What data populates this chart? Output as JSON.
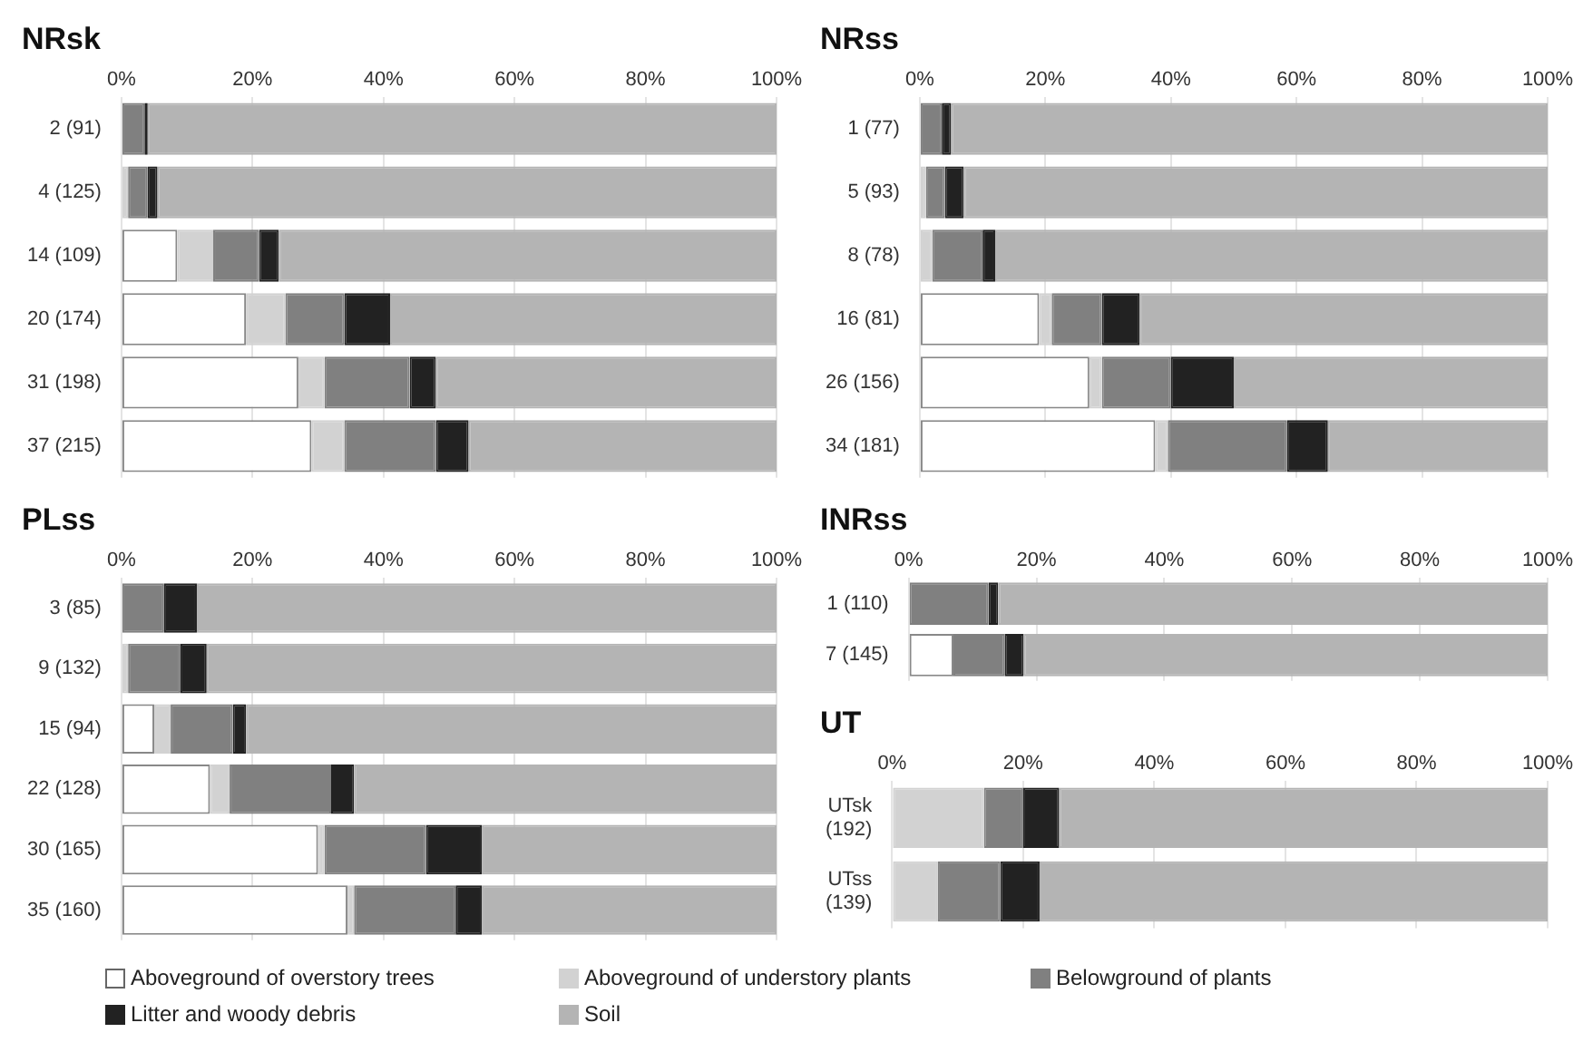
{
  "chart_data": [
    {
      "type": "bar",
      "title": "NRsk",
      "orientation": "horizontal",
      "stacked": true,
      "categories": [
        "2 (91)",
        "4 (125)",
        "14 (109)",
        "20 (174)",
        "31 (198)",
        "37 (215)"
      ],
      "xlim": [
        0,
        100
      ],
      "xticks": [
        {
          "value": 0,
          "label": "0%"
        },
        {
          "value": 20,
          "label": "20%"
        },
        {
          "value": 40,
          "label": "40%"
        },
        {
          "value": 60,
          "label": "60%"
        },
        {
          "value": 80,
          "label": "80%"
        },
        {
          "value": 100,
          "label": "100%"
        }
      ],
      "grid": "x",
      "legend": "bottom",
      "series": [
        {
          "name": "Aboveground of overstory trees",
          "color": "#ffffff",
          "values": [
            0,
            0,
            8.5,
            19,
            27,
            29
          ]
        },
        {
          "name": "Aboveground of understory plants",
          "color": "#d2d2d2",
          "values": [
            0,
            1,
            5.5,
            6,
            4,
            5
          ]
        },
        {
          "name": "Belowground of plants",
          "color": "#808080",
          "values": [
            3.5,
            3,
            7,
            9,
            13,
            14
          ]
        },
        {
          "name": "Litter and woody debris",
          "color": "#222222",
          "values": [
            0.5,
            1.5,
            3,
            7,
            4,
            5
          ]
        },
        {
          "name": "Soil",
          "color": "#b4b4b4",
          "values": [
            96,
            94.5,
            76,
            59,
            52,
            47
          ]
        }
      ]
    },
    {
      "type": "bar",
      "title": "NRss",
      "orientation": "horizontal",
      "stacked": true,
      "categories": [
        "1 (77)",
        "5 (93)",
        "8 (78)",
        "16 (81)",
        "26 (156)",
        "34 (181)"
      ],
      "xlim": [
        0,
        100
      ],
      "xticks": [
        {
          "value": 0,
          "label": "0%"
        },
        {
          "value": 20,
          "label": "20%"
        },
        {
          "value": 40,
          "label": "40%"
        },
        {
          "value": 60,
          "label": "60%"
        },
        {
          "value": 80,
          "label": "80%"
        },
        {
          "value": 100,
          "label": "100%"
        }
      ],
      "grid": "x",
      "series": [
        {
          "color": "#ffffff",
          "values": [
            0,
            0,
            0,
            19,
            27,
            37.5
          ]
        },
        {
          "color": "#d2d2d2",
          "values": [
            0,
            1,
            2,
            2,
            2,
            2
          ]
        },
        {
          "color": "#808080",
          "values": [
            3.5,
            3,
            8,
            8,
            11,
            19
          ]
        },
        {
          "color": "#222222",
          "values": [
            1.5,
            3,
            2,
            6,
            10,
            6.5
          ]
        },
        {
          "color": "#b4b4b4",
          "values": [
            95,
            93,
            88,
            65,
            50,
            35
          ]
        }
      ]
    },
    {
      "type": "bar",
      "title": "PLss",
      "orientation": "horizontal",
      "stacked": true,
      "categories": [
        "3 (85)",
        "9 (132)",
        "15 (94)",
        "22 (128)",
        "30 (165)",
        "35 (160)"
      ],
      "xlim": [
        0,
        100
      ],
      "xticks": [
        {
          "value": 0,
          "label": "0%"
        },
        {
          "value": 20,
          "label": "20%"
        },
        {
          "value": 40,
          "label": "40%"
        },
        {
          "value": 60,
          "label": "60%"
        },
        {
          "value": 80,
          "label": "80%"
        },
        {
          "value": 100,
          "label": "100%"
        }
      ],
      "grid": "x",
      "series": [
        {
          "color": "#ffffff",
          "values": [
            0,
            0,
            5,
            13.5,
            30,
            34.5
          ]
        },
        {
          "color": "#d2d2d2",
          "values": [
            0,
            1,
            2.5,
            3,
            1,
            1
          ]
        },
        {
          "color": "#808080",
          "values": [
            6.5,
            8,
            9.5,
            15.5,
            15.5,
            15.5
          ]
        },
        {
          "color": "#222222",
          "values": [
            5,
            4,
            2,
            3.5,
            8.5,
            4
          ]
        },
        {
          "color": "#b4b4b4",
          "values": [
            88.5,
            87,
            81,
            64.5,
            45,
            45
          ]
        }
      ]
    },
    {
      "type": "bar",
      "title": "INRss",
      "orientation": "horizontal",
      "stacked": true,
      "categories": [
        "1 (110)",
        "7 (145)"
      ],
      "xlim": [
        0,
        100
      ],
      "xticks": [
        {
          "value": 0,
          "label": "0%"
        },
        {
          "value": 20,
          "label": "20%"
        },
        {
          "value": 40,
          "label": "40%"
        },
        {
          "value": 60,
          "label": "60%"
        },
        {
          "value": 80,
          "label": "80%"
        },
        {
          "value": 100,
          "label": "100%"
        }
      ],
      "grid": "x",
      "series": [
        {
          "color": "#ffffff",
          "values": [
            0,
            7
          ]
        },
        {
          "color": "#d2d2d2",
          "values": [
            0,
            0
          ]
        },
        {
          "color": "#808080",
          "values": [
            12.5,
            8
          ]
        },
        {
          "color": "#222222",
          "values": [
            1.5,
            3
          ]
        },
        {
          "color": "#b4b4b4",
          "values": [
            86,
            82
          ]
        }
      ]
    },
    {
      "type": "bar",
      "title": "UT",
      "orientation": "horizontal",
      "stacked": true,
      "categories": [
        "UTsk\n(192)",
        "UTss\n(139)"
      ],
      "xlim": [
        0,
        100
      ],
      "xticks": [
        {
          "value": 0,
          "label": "0%"
        },
        {
          "value": 20,
          "label": "20%"
        },
        {
          "value": 40,
          "label": "40%"
        },
        {
          "value": 60,
          "label": "60%"
        },
        {
          "value": 80,
          "label": "80%"
        },
        {
          "value": 100,
          "label": "100%"
        }
      ],
      "grid": "x",
      "series": [
        {
          "color": "#ffffff",
          "values": [
            0,
            0
          ]
        },
        {
          "color": "#d2d2d2",
          "values": [
            14,
            7
          ]
        },
        {
          "color": "#808080",
          "values": [
            6,
            9.5
          ]
        },
        {
          "color": "#222222",
          "values": [
            5.5,
            6
          ]
        },
        {
          "color": "#b4b4b4",
          "values": [
            74.5,
            77.5
          ]
        }
      ]
    }
  ]
}
